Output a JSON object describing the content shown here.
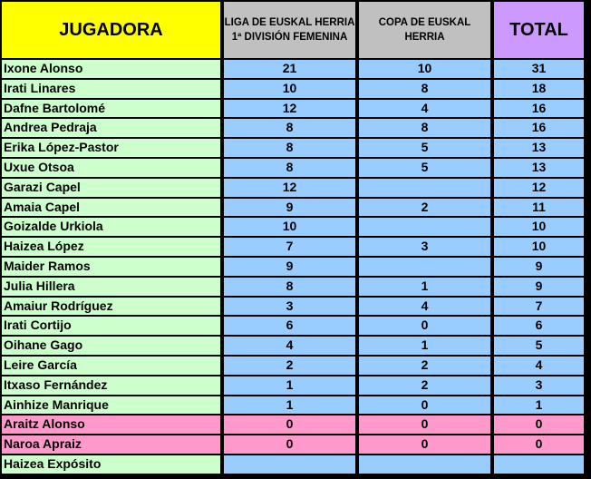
{
  "headers": {
    "player": "JUGADORA",
    "liga": "LIGA DE EUSKAL HERRIA 1ª DIVISIÓN FEMENINA",
    "copa": "COPA DE EUSKAL HERRIA",
    "total": "TOTAL"
  },
  "rows": [
    {
      "name": "Ixone Alonso",
      "liga": "21",
      "copa": "10",
      "total": "31",
      "highlight": false
    },
    {
      "name": "Irati Linares",
      "liga": "10",
      "copa": "8",
      "total": "18",
      "highlight": false
    },
    {
      "name": "Dafne Bartolomé",
      "liga": "12",
      "copa": "4",
      "total": "16",
      "highlight": false
    },
    {
      "name": "Andrea Pedraja",
      "liga": "8",
      "copa": "8",
      "total": "16",
      "highlight": false
    },
    {
      "name": "Erika López-Pastor",
      "liga": "8",
      "copa": "5",
      "total": "13",
      "highlight": false
    },
    {
      "name": "Uxue Otsoa",
      "liga": "8",
      "copa": "5",
      "total": "13",
      "highlight": false
    },
    {
      "name": "Garazi Capel",
      "liga": "12",
      "copa": "",
      "total": "12",
      "highlight": false
    },
    {
      "name": "Amaia Capel",
      "liga": "9",
      "copa": "2",
      "total": "11",
      "highlight": false
    },
    {
      "name": "Goizalde Urkiola",
      "liga": "10",
      "copa": "",
      "total": "10",
      "highlight": false
    },
    {
      "name": "Haizea López",
      "liga": "7",
      "copa": "3",
      "total": "10",
      "highlight": false
    },
    {
      "name": "Maider Ramos",
      "liga": "9",
      "copa": "",
      "total": "9",
      "highlight": false
    },
    {
      "name": "Julia Hillera",
      "liga": "8",
      "copa": "1",
      "total": "9",
      "highlight": false
    },
    {
      "name": "Amaiur Rodríguez",
      "liga": "3",
      "copa": "4",
      "total": "7",
      "highlight": false
    },
    {
      "name": "Irati Cortijo",
      "liga": "6",
      "copa": "0",
      "total": "6",
      "highlight": false
    },
    {
      "name": "Oihane Gago",
      "liga": "4",
      "copa": "1",
      "total": "5",
      "highlight": false
    },
    {
      "name": "Leire García",
      "liga": "2",
      "copa": "2",
      "total": "4",
      "highlight": false
    },
    {
      "name": "Itxaso Fernández",
      "liga": "1",
      "copa": "2",
      "total": "3",
      "highlight": false
    },
    {
      "name": "Ainhize Manrique",
      "liga": "1",
      "copa": "0",
      "total": "1",
      "highlight": false
    },
    {
      "name": "Araitz Alonso",
      "liga": "0",
      "copa": "0",
      "total": "0",
      "highlight": true
    },
    {
      "name": "Naroa Apraiz",
      "liga": "0",
      "copa": "0",
      "total": "0",
      "highlight": true
    },
    {
      "name": "Haizea Expósito",
      "liga": "",
      "copa": "",
      "total": "",
      "highlight": false
    }
  ],
  "colors": {
    "header_player": "#ffff00",
    "header_competitions": "#c0c0c0",
    "header_total": "#cc99ff",
    "name_cell": "#ccffcc",
    "number_cell": "#99ccff",
    "highlight_row": "#ff99cc",
    "grid": "#000000"
  }
}
